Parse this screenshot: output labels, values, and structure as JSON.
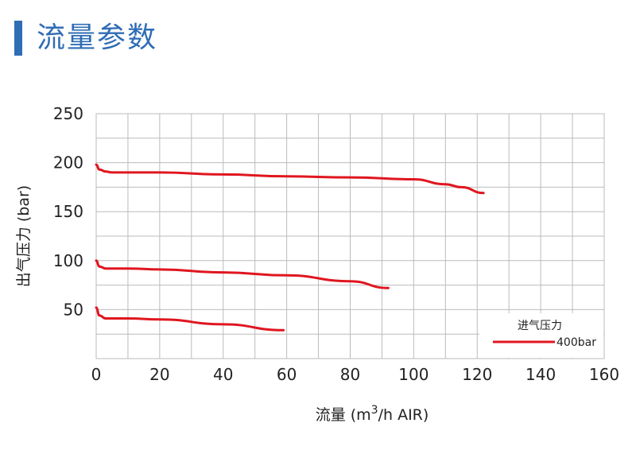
{
  "page": {
    "title": "流量参数",
    "title_color": "#2f6db5",
    "accent_color": "#2f6db5"
  },
  "chart_data": {
    "type": "line",
    "title": "",
    "xlabel": "流量 (m3/h AIR)",
    "xlabel_main": "流量 (m",
    "xlabel_sup": "3",
    "xlabel_tail": "/h AIR)",
    "ylabel": "出气压力 (bar)",
    "xlim": [
      0,
      160
    ],
    "ylim": [
      0,
      250
    ],
    "x_ticks": [
      0,
      20,
      40,
      60,
      80,
      100,
      120,
      140,
      160
    ],
    "y_ticks": [
      50,
      100,
      150,
      200,
      250
    ],
    "y_tick_labels": [
      "50",
      "100",
      "150",
      "200",
      "250"
    ],
    "grid": true,
    "legend": {
      "placement": "bottom-right",
      "title": "进气压力",
      "entry": "400bar",
      "color": "#e0161f"
    },
    "series": [
      {
        "x": [
          0,
          1,
          3,
          5,
          10,
          20,
          40,
          60,
          80,
          100,
          110,
          115,
          122
        ],
        "y": [
          198,
          193,
          191,
          190,
          190,
          190,
          188,
          186,
          185,
          183,
          178,
          175,
          169
        ]
      },
      {
        "x": [
          0,
          1,
          3,
          5,
          10,
          20,
          40,
          60,
          80,
          92
        ],
        "y": [
          100,
          94,
          92,
          92,
          92,
          91,
          88,
          85,
          79,
          72
        ]
      },
      {
        "x": [
          0,
          1,
          3,
          5,
          10,
          20,
          40,
          59
        ],
        "y": [
          52,
          44,
          41,
          41,
          41,
          40,
          35,
          29
        ]
      }
    ]
  }
}
